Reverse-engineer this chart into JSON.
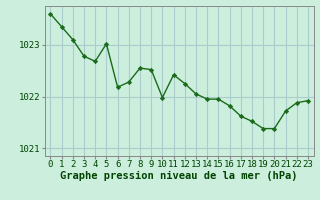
{
  "x": [
    0,
    1,
    2,
    3,
    4,
    5,
    6,
    7,
    8,
    9,
    10,
    11,
    12,
    13,
    14,
    15,
    16,
    17,
    18,
    19,
    20,
    21,
    22,
    23
  ],
  "y": [
    1023.6,
    1023.35,
    1023.1,
    1022.78,
    1022.68,
    1023.02,
    1022.18,
    1022.28,
    1022.55,
    1022.52,
    1021.98,
    1022.42,
    1022.25,
    1022.05,
    1021.95,
    1021.95,
    1021.82,
    1021.62,
    1021.52,
    1021.38,
    1021.38,
    1021.72,
    1021.88,
    1021.92
  ],
  "ylim": [
    1020.85,
    1023.75
  ],
  "yticks": [
    1021,
    1022,
    1023
  ],
  "xticks": [
    0,
    1,
    2,
    3,
    4,
    5,
    6,
    7,
    8,
    9,
    10,
    11,
    12,
    13,
    14,
    15,
    16,
    17,
    18,
    19,
    20,
    21,
    22,
    23
  ],
  "line_color": "#1a6b1a",
  "marker": "D",
  "marker_size": 2.2,
  "bg_color": "#cceedd",
  "grid_color": "#aacccc",
  "xlabel": "Graphe pression niveau de la mer (hPa)",
  "xlabel_color": "#004400",
  "tick_color": "#004400",
  "axis_color": "#888888",
  "xlabel_fontsize": 7.5,
  "tick_fontsize": 6.5,
  "linewidth": 1.0
}
